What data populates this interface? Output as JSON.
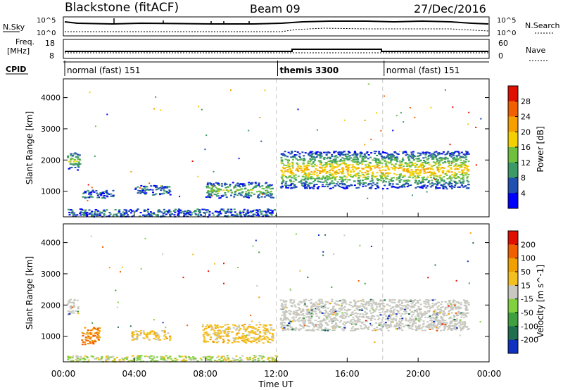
{
  "header": {
    "title": "Blackstone (fitACF)",
    "beam": "Beam 09",
    "date": "27/Dec/2016"
  },
  "status_panel": {
    "nsky_label": "N.Sky",
    "nsearch_label": "N.Search",
    "freq_label": "Freq.",
    "freq_unit": "[MHz]",
    "nave_label": "Nave",
    "cpid_label": "CPID",
    "count_tick_top": "10^5",
    "count_tick_bottom": "10^0",
    "freq_tick_top": "18",
    "freq_tick_bottom": "8",
    "nave_tick_top": "60",
    "nave_tick_bottom": "0",
    "cpid_segments": [
      {
        "label": "normal (fast) 151",
        "start_hour": 0
      },
      {
        "label": "themis 3300",
        "start_hour": 12
      },
      {
        "label": "normal (fast) 151",
        "start_hour": 18
      }
    ]
  },
  "chart_data": [
    {
      "type": "heatmap",
      "name": "power",
      "ylabel": "Slant Range [km]",
      "xlabel": "",
      "xlim_hours": [
        0,
        24
      ],
      "ylim_km": [
        180,
        4600
      ],
      "y_ticks": [
        "1000",
        "2000",
        "3000",
        "4000"
      ],
      "colorbar": {
        "label": "Power [dB]",
        "ticks": [
          "4",
          "8",
          "12",
          "16",
          "20",
          "24",
          "28"
        ],
        "colors": [
          "#0000ff",
          "#2050b0",
          "#3c9a66",
          "#70c040",
          "#f4d000",
          "#f6a000",
          "#f06000",
          "#e01000"
        ]
      },
      "echo_regions": [
        {
          "t0": 0.2,
          "t1": 0.9,
          "r0": 1700,
          "r1": 2300,
          "level": 12
        },
        {
          "t0": 1.0,
          "t1": 2.8,
          "r0": 800,
          "r1": 1050,
          "level": 6
        },
        {
          "t0": 4.0,
          "t1": 6.0,
          "r0": 900,
          "r1": 1200,
          "level": 7
        },
        {
          "t0": 8.0,
          "t1": 11.8,
          "r0": 800,
          "r1": 1300,
          "level": 12
        },
        {
          "t0": 0.2,
          "t1": 12.0,
          "r0": 200,
          "r1": 450,
          "level": 8
        },
        {
          "t0": 12.2,
          "t1": 22.8,
          "r0": 1100,
          "r1": 2300,
          "level": 18
        }
      ]
    },
    {
      "type": "heatmap",
      "name": "velocity",
      "ylabel": "Slant Range [km]",
      "xlabel": "Time UT",
      "x_ticks": [
        "00:00",
        "04:00",
        "08:00",
        "12:00",
        "16:00",
        "20:00",
        "00:00"
      ],
      "xlim_hours": [
        0,
        24
      ],
      "ylim_km": [
        180,
        4600
      ],
      "y_ticks": [
        "1000",
        "2000",
        "3000",
        "4000"
      ],
      "colorbar": {
        "label": "Velocity [m s^-1]",
        "ticks": [
          "200",
          "100",
          "50",
          "15",
          "-15",
          "-50",
          "-100",
          "-200"
        ],
        "colors": [
          "#1030c0",
          "#207050",
          "#40a040",
          "#80d040",
          "#c8c8c0",
          "#f4c020",
          "#f0a000",
          "#f06000",
          "#e01000"
        ]
      },
      "echo_regions": [
        {
          "t0": 0.2,
          "t1": 0.8,
          "r0": 1700,
          "r1": 2200,
          "level": "ground"
        },
        {
          "t0": 1.0,
          "t1": 2.0,
          "r0": 750,
          "r1": 1300,
          "level": -100
        },
        {
          "t0": 3.8,
          "t1": 6.0,
          "r0": 900,
          "r1": 1200,
          "level": -50
        },
        {
          "t0": 7.8,
          "t1": 11.8,
          "r0": 800,
          "r1": 1400,
          "level": -50
        },
        {
          "t0": 0.2,
          "t1": 12.0,
          "r0": 200,
          "r1": 400,
          "level": 50
        },
        {
          "t0": 12.2,
          "t1": 22.8,
          "r0": 1200,
          "r1": 2200,
          "level": "ground"
        }
      ]
    }
  ]
}
